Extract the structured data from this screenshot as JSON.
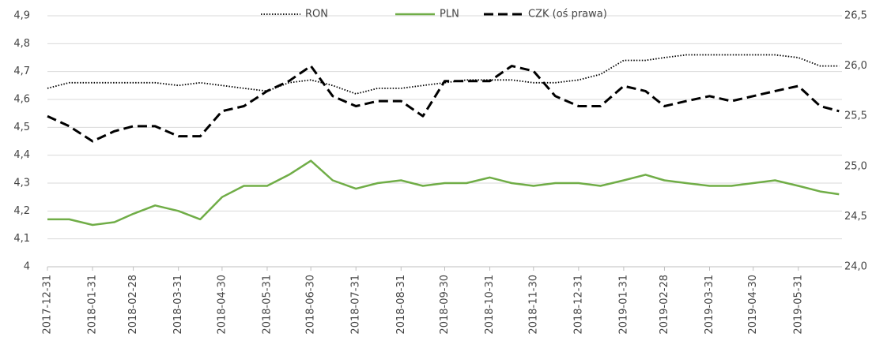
{
  "chart_data": {
    "type": "line",
    "x": [
      "2017-12-31",
      "2018-01-15",
      "2018-01-31",
      "2018-02-15",
      "2018-02-28",
      "2018-03-15",
      "2018-03-31",
      "2018-04-15",
      "2018-04-30",
      "2018-05-15",
      "2018-05-31",
      "2018-06-15",
      "2018-06-30",
      "2018-07-15",
      "2018-07-31",
      "2018-08-15",
      "2018-08-31",
      "2018-09-15",
      "2018-09-30",
      "2018-10-15",
      "2018-10-31",
      "2018-11-15",
      "2018-11-30",
      "2018-12-15",
      "2018-12-31",
      "2019-01-15",
      "2019-01-31",
      "2019-02-15",
      "2019-02-28",
      "2019-03-15",
      "2019-03-31",
      "2019-04-15",
      "2019-04-30",
      "2019-05-15",
      "2019-05-31",
      "2019-06-15",
      "2019-06-28"
    ],
    "xlim": [
      "2017-12-31",
      "2019-06-30"
    ],
    "xticks": [
      "2017-12-31",
      "2018-01-31",
      "2018-02-28",
      "2018-03-31",
      "2018-04-30",
      "2018-05-31",
      "2018-06-30",
      "2018-07-31",
      "2018-08-31",
      "2018-09-30",
      "2018-10-31",
      "2018-11-30",
      "2018-12-31",
      "2019-01-31",
      "2019-02-28",
      "2019-03-31",
      "2019-04-30",
      "2019-05-31"
    ],
    "ylim": [
      4,
      4.9
    ],
    "yticks": [
      4,
      {
        "value": 4.1,
        "label": "4,1"
      },
      {
        "value": 4.2,
        "label": "4,2"
      },
      {
        "value": 4.3,
        "label": "4,3"
      },
      {
        "value": 4.4,
        "label": "4,4"
      },
      {
        "value": 4.5,
        "label": "4,5"
      },
      {
        "value": 4.6,
        "label": "4,6"
      },
      {
        "value": 4.7,
        "label": "4,7"
      },
      {
        "value": 4.8,
        "label": "4,8"
      },
      {
        "value": 4.9,
        "label": "4,9"
      }
    ],
    "y2lim": [
      24,
      26.5
    ],
    "y2ticks": [
      {
        "value": 24,
        "label": "24,0"
      },
      {
        "value": 24.5,
        "label": "24,5"
      },
      {
        "value": 25,
        "label": "25,0"
      },
      {
        "value": 25.5,
        "label": "25,5"
      },
      {
        "value": 26,
        "label": "26,0"
      },
      {
        "value": 26.5,
        "label": "26,5"
      }
    ],
    "grid": true,
    "legend": "top",
    "series": [
      {
        "name": "RON",
        "color": "#000000",
        "dash": "dotted",
        "values": [
          4.64,
          4.66,
          4.66,
          4.66,
          4.66,
          4.66,
          4.65,
          4.66,
          4.65,
          4.64,
          4.63,
          4.66,
          4.67,
          4.65,
          4.62,
          4.64,
          4.64,
          4.65,
          4.66,
          4.67,
          4.67,
          4.67,
          4.66,
          4.66,
          4.67,
          4.69,
          4.74,
          4.74,
          4.75,
          4.76,
          4.76,
          4.76,
          4.76,
          4.76,
          4.75,
          4.72,
          4.72
        ]
      },
      {
        "name": "PLN",
        "color": "#70ad47",
        "dash": "solid",
        "values": [
          4.17,
          4.17,
          4.15,
          4.16,
          4.19,
          4.22,
          4.2,
          4.17,
          4.25,
          4.29,
          4.29,
          4.33,
          4.38,
          4.31,
          4.28,
          4.3,
          4.31,
          4.29,
          4.3,
          4.3,
          4.32,
          4.3,
          4.29,
          4.3,
          4.3,
          4.29,
          4.31,
          4.33,
          4.31,
          4.3,
          4.29,
          4.29,
          4.3,
          4.31,
          4.29,
          4.27,
          4.26
        ]
      },
      {
        "name": "CZK (oś prawa)",
        "color": "#000000",
        "dash": "dashed",
        "axis": "y2",
        "values": [
          25.5,
          25.4,
          25.25,
          25.35,
          25.4,
          25.4,
          25.3,
          25.3,
          25.55,
          25.6,
          25.75,
          25.85,
          26.0,
          25.7,
          25.6,
          25.65,
          25.65,
          25.5,
          25.85,
          25.85,
          25.85,
          26.0,
          25.95,
          25.7,
          25.6,
          25.6,
          25.8,
          25.75,
          25.6,
          25.65,
          25.7,
          25.65,
          25.7,
          25.75,
          25.8,
          25.6,
          25.55
        ]
      }
    ]
  }
}
